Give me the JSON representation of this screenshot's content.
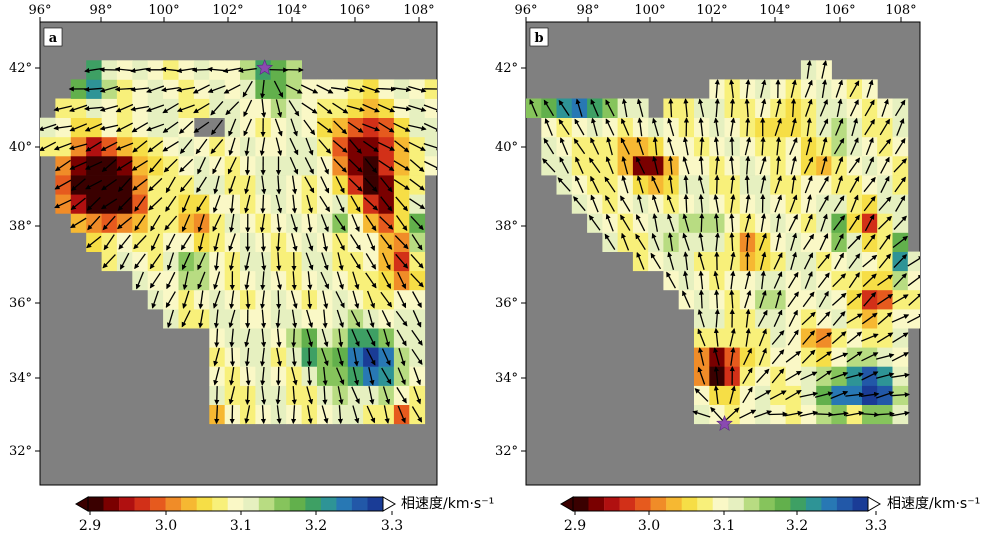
{
  "axes": {
    "lon_ticks": [
      "96°",
      "98°",
      "100°",
      "102°",
      "104°",
      "106°",
      "108°"
    ],
    "lat_ticks": [
      "42°",
      "40°",
      "38°",
      "36°",
      "34°",
      "32°"
    ]
  },
  "panels": [
    {
      "letter": "a",
      "station_lon": 103.3,
      "station_lat": 41.8,
      "colorbar": {
        "ticks": [
          "2.9",
          "3.0",
          "3.1",
          "3.2",
          "3.3"
        ],
        "title": "相速度/km·s⁻¹"
      }
    },
    {
      "letter": "b",
      "station_lon": 102.5,
      "station_lat": 32.5,
      "colorbar": {
        "ticks": [
          "2.9",
          "3.0",
          "3.1",
          "3.2",
          "3.3"
        ],
        "title": "相速度/km·s⁻¹"
      }
    }
  ],
  "colorscale": {
    "min": 2.9,
    "max": 3.3,
    "colors": [
      "#3a0000",
      "#7a0000",
      "#b01010",
      "#d23018",
      "#e65a1e",
      "#f08c28",
      "#f6b832",
      "#f6de46",
      "#f8f07a",
      "#faf8c6",
      "#e6f0c0",
      "#b8dc82",
      "#86c45c",
      "#62b04c",
      "#3ea064",
      "#2e9496",
      "#2878b4",
      "#2258a8",
      "#1a3c96"
    ]
  },
  "station_marker_color": "#8a4ab0",
  "background_color": "#808080"
}
